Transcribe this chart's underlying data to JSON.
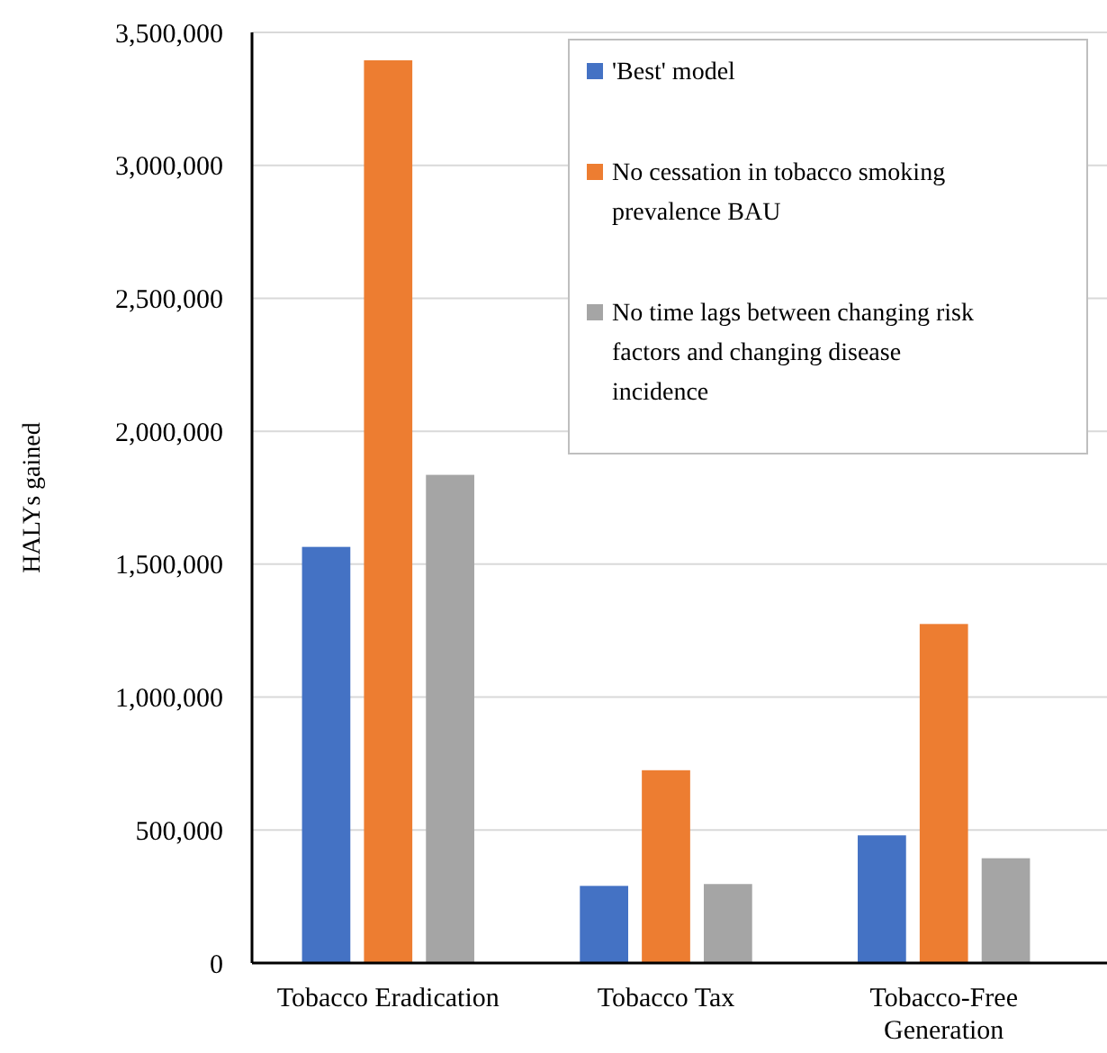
{
  "chart_data": {
    "type": "bar",
    "ylabel": "HALYs gained",
    "categories": [
      "Tobacco Eradication",
      "Tobacco Tax",
      "Tobacco-Free Generation"
    ],
    "series": [
      {
        "name": "'Best' model",
        "color": "#4472c4",
        "values": [
          1565000,
          290000,
          480000
        ]
      },
      {
        "name": "No cessation in tobacco smoking prevalence BAU",
        "color": "#ed7d31",
        "values": [
          3395000,
          725000,
          1275000
        ]
      },
      {
        "name": "No time lags between changing risk factors and changing disease incidence",
        "color": "#a5a5a5",
        "values": [
          1836000,
          297000,
          394000
        ]
      }
    ],
    "ylim": [
      0,
      3500000
    ],
    "yticks": [
      {
        "value": 0,
        "label": "0"
      },
      {
        "value": 500000,
        "label": "500,000"
      },
      {
        "value": 1000000,
        "label": "1,000,000"
      },
      {
        "value": 1500000,
        "label": "1,500,000"
      },
      {
        "value": 2000000,
        "label": "2,000,000"
      },
      {
        "value": 2500000,
        "label": "2,500,000"
      },
      {
        "value": 3000000,
        "label": "3,000,000"
      },
      {
        "value": 3500000,
        "label": "3,500,000"
      }
    ],
    "grid": "y",
    "legend": "top right"
  }
}
